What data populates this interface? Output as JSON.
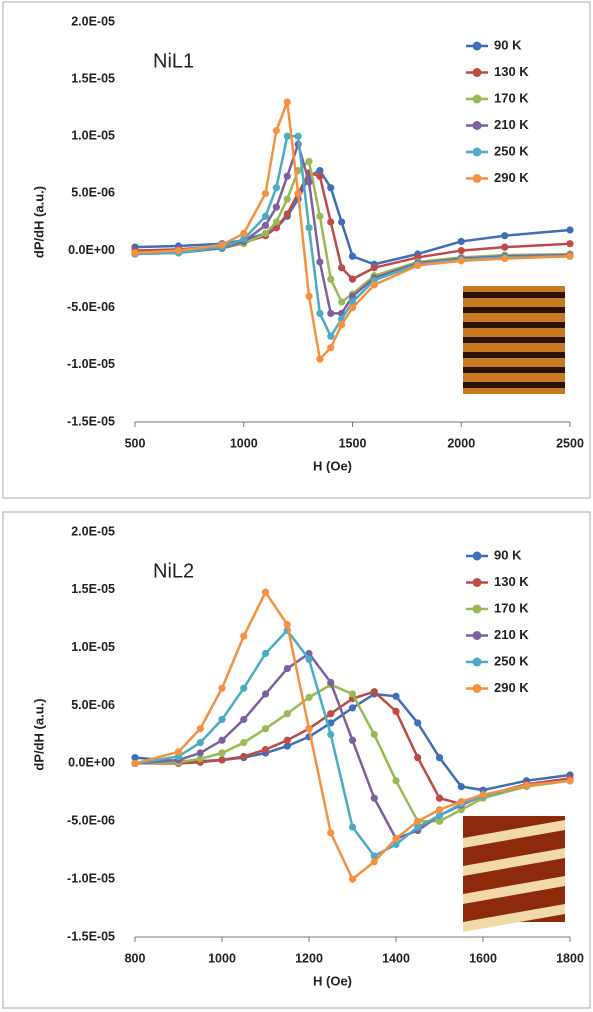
{
  "chart_data": [
    {
      "type": "line",
      "annotation": "NiL1",
      "x_label": "H (Oe)",
      "y_label": "dP/dH (a.u.)",
      "x": [
        500,
        700,
        900,
        1000,
        1100,
        1150,
        1200,
        1250,
        1300,
        1350,
        1400,
        1450,
        1500,
        1600,
        1800,
        2000,
        2200,
        2500
      ],
      "series": [
        {
          "name": "90 K",
          "color": "#3e6fb8",
          "values": [
            3e-07,
            4e-07,
            6e-07,
            9e-07,
            1.5e-06,
            2e-06,
            3e-06,
            4.5e-06,
            6.5e-06,
            7e-06,
            5.5e-06,
            2.5e-06,
            -5e-07,
            -1.2e-06,
            -3e-07,
            8e-07,
            1.3e-06,
            1.8e-06
          ]
        },
        {
          "name": "130 K",
          "color": "#be4b48",
          "values": [
            0,
            1e-07,
            4e-07,
            7e-07,
            1.3e-06,
            2e-06,
            3.2e-06,
            5e-06,
            6.8e-06,
            6.5e-06,
            2.5e-06,
            -1.5e-06,
            -2.5e-06,
            -1.5e-06,
            -6e-07,
            0,
            3e-07,
            6e-07
          ]
        },
        {
          "name": "170 K",
          "color": "#98b954",
          "values": [
            -2e-07,
            -1e-07,
            2e-07,
            6e-07,
            1.5e-06,
            2.5e-06,
            4.5e-06,
            7e-06,
            7.8e-06,
            3e-06,
            -2.5e-06,
            -4.5e-06,
            -3.8e-06,
            -2.2e-06,
            -1e-06,
            -6e-07,
            -4e-07,
            -3e-07
          ]
        },
        {
          "name": "210 K",
          "color": "#7d60a0",
          "values": [
            -3e-07,
            -2e-07,
            2e-07,
            8e-07,
            2.2e-06,
            3.8e-06,
            6.5e-06,
            9.3e-06,
            6e-06,
            -1e-06,
            -5.5e-06,
            -5.5e-06,
            -4e-06,
            -2.4e-06,
            -1.1e-06,
            -7e-07,
            -5e-07,
            -4e-07
          ]
        },
        {
          "name": "250 K",
          "color": "#4aacc5",
          "values": [
            -3e-07,
            -2e-07,
            3e-07,
            1e-06,
            3e-06,
            5.5e-06,
            1e-05,
            1e-05,
            2e-06,
            -5.5e-06,
            -7.5e-06,
            -6e-06,
            -4.5e-06,
            -2.6e-06,
            -1.2e-06,
            -8e-07,
            -6e-07,
            -5e-07
          ]
        },
        {
          "name": "290 K",
          "color": "#f59242",
          "values": [
            -2e-07,
            0,
            5e-07,
            1.5e-06,
            5e-06,
            1.05e-05,
            1.3e-05,
            5e-06,
            -4e-06,
            -9.5e-06,
            -8.5e-06,
            -6.5e-06,
            -5e-06,
            -3e-06,
            -1.3e-06,
            -9e-07,
            -7e-07,
            -5e-07
          ]
        }
      ],
      "xlim": [
        500,
        2500
      ],
      "xticks": [
        500,
        1000,
        1500,
        2000,
        2500
      ],
      "ylim": [
        -1.5e-05,
        2e-05
      ],
      "yticks": [
        {
          "value": 2e-05,
          "label": "2.0E-05"
        },
        {
          "value": 1.5e-05,
          "label": "1.5E-05"
        },
        {
          "value": 1e-05,
          "label": "1.0E-05"
        },
        {
          "value": 5e-06,
          "label": "5.0E-06"
        },
        {
          "value": 0,
          "label": "0.0E+00"
        },
        {
          "value": -5e-06,
          "label": "-5.0E-06"
        },
        {
          "value": -1e-05,
          "label": "-1.0E-05"
        },
        {
          "value": -1.5e-05,
          "label": "-1.5E-05"
        }
      ],
      "grid": false,
      "legend": "right"
    },
    {
      "type": "line",
      "annotation": "NiL2",
      "x_label": "H (Oe)",
      "y_label": "dP/dH (a.u.)",
      "x": [
        800,
        900,
        950,
        1000,
        1050,
        1100,
        1150,
        1200,
        1250,
        1300,
        1350,
        1400,
        1450,
        1500,
        1550,
        1600,
        1700,
        1800
      ],
      "series": [
        {
          "name": "90 K",
          "color": "#3e6fb8",
          "values": [
            5e-07,
            2e-07,
            2e-07,
            3e-07,
            5e-07,
            9e-07,
            1.5e-06,
            2.3e-06,
            3.5e-06,
            4.8e-06,
            6e-06,
            5.8e-06,
            3.5e-06,
            5e-07,
            -2e-06,
            -2.3e-06,
            -1.5e-06,
            -1e-06
          ]
        },
        {
          "name": "130 K",
          "color": "#be4b48",
          "values": [
            0,
            0,
            1e-07,
            3e-07,
            6e-07,
            1.2e-06,
            2e-06,
            3e-06,
            4.3e-06,
            5.6e-06,
            6.2e-06,
            4.5e-06,
            5e-07,
            -3e-06,
            -3.5e-06,
            -2.8e-06,
            -1.8e-06,
            -1.3e-06
          ]
        },
        {
          "name": "170 K",
          "color": "#98b954",
          "values": [
            0,
            1e-07,
            4e-07,
            9e-07,
            1.8e-06,
            3e-06,
            4.3e-06,
            5.7e-06,
            6.8e-06,
            6e-06,
            2.5e-06,
            -1.5e-06,
            -5e-06,
            -5e-06,
            -4e-06,
            -3e-06,
            -2e-06,
            -1.5e-06
          ]
        },
        {
          "name": "210 K",
          "color": "#7d60a0",
          "values": [
            0,
            3e-07,
            9e-07,
            2e-06,
            3.8e-06,
            6e-06,
            8.2e-06,
            9.5e-06,
            7e-06,
            2e-06,
            -3e-06,
            -6.5e-06,
            -5.8e-06,
            -4.5e-06,
            -3.6e-06,
            -2.8e-06,
            -1.9e-06,
            -1.5e-06
          ]
        },
        {
          "name": "250 K",
          "color": "#4aacc5",
          "values": [
            0,
            6e-07,
            1.8e-06,
            3.8e-06,
            6.5e-06,
            9.5e-06,
            1.15e-05,
            9e-06,
            2.5e-06,
            -5.5e-06,
            -8e-06,
            -7e-06,
            -5.5e-06,
            -4.5e-06,
            -3.5e-06,
            -2.8e-06,
            -1.9e-06,
            -1.5e-06
          ]
        },
        {
          "name": "290 K",
          "color": "#f59242",
          "values": [
            0,
            1e-06,
            3e-06,
            6.5e-06,
            1.1e-05,
            1.48e-05,
            1.2e-05,
            3e-06,
            -6e-06,
            -1e-05,
            -8.5e-06,
            -6.5e-06,
            -5e-06,
            -4e-06,
            -3.3e-06,
            -2.7e-06,
            -1.9e-06,
            -1.5e-06
          ]
        }
      ],
      "xlim": [
        800,
        1800
      ],
      "xticks": [
        800,
        1000,
        1200,
        1400,
        1600,
        1800
      ],
      "ylim": [
        -1.5e-05,
        2e-05
      ],
      "yticks": [
        {
          "value": 2e-05,
          "label": "2.0E-05"
        },
        {
          "value": 1.5e-05,
          "label": "1.5E-05"
        },
        {
          "value": 1e-05,
          "label": "1.0E-05"
        },
        {
          "value": 5e-06,
          "label": "5.0E-06"
        },
        {
          "value": 0,
          "label": "0.0E+00"
        },
        {
          "value": -5e-06,
          "label": "-5.0E-06"
        },
        {
          "value": -1e-05,
          "label": "-1.0E-05"
        },
        {
          "value": -1.5e-05,
          "label": "-1.5E-05"
        }
      ],
      "grid": false,
      "legend": "right"
    }
  ]
}
